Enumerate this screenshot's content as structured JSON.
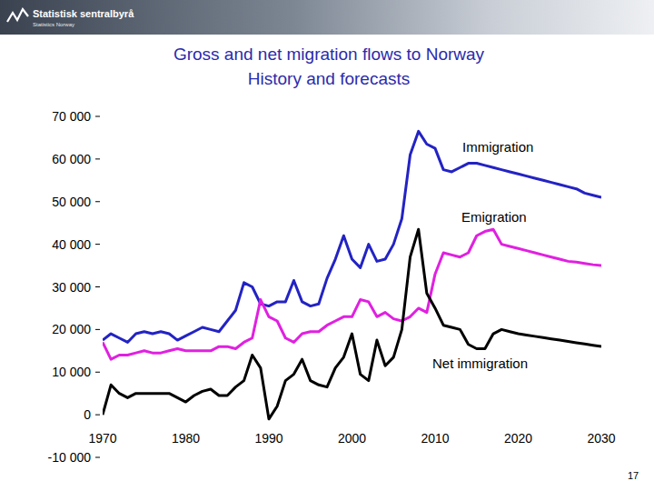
{
  "header": {
    "logo": "Statistisk sentralbyrå",
    "logo_subtitle": "Statistics Norway"
  },
  "page_number": "17",
  "chart_data": {
    "type": "line",
    "title": "Gross and net migration flows to Norway",
    "subtitle": "History and forecasts",
    "x": [
      1970,
      1971,
      1972,
      1973,
      1974,
      1975,
      1976,
      1977,
      1978,
      1979,
      1980,
      1981,
      1982,
      1983,
      1984,
      1985,
      1986,
      1987,
      1988,
      1989,
      1990,
      1991,
      1992,
      1993,
      1994,
      1995,
      1996,
      1997,
      1998,
      1999,
      2000,
      2001,
      2002,
      2003,
      2004,
      2005,
      2006,
      2007,
      2008,
      2009,
      2010,
      2011,
      2012,
      2013,
      2014,
      2015,
      2016,
      2017,
      2018,
      2019,
      2020,
      2021,
      2022,
      2023,
      2024,
      2025,
      2026,
      2027,
      2028,
      2029,
      2030
    ],
    "series": [
      {
        "name": "Immigration",
        "color": "#2323c4",
        "values": [
          17500,
          19000,
          18000,
          17000,
          19000,
          19500,
          19000,
          19500,
          19000,
          17500,
          18500,
          19500,
          20500,
          20000,
          19500,
          22000,
          24500,
          31000,
          30000,
          26000,
          25500,
          26500,
          26500,
          31500,
          26500,
          25500,
          26000,
          32000,
          36500,
          42000,
          36500,
          34500,
          40000,
          36000,
          36500,
          40000,
          46000,
          61000,
          66500,
          63500,
          62500,
          57500,
          57000,
          58000,
          59000,
          59000,
          58500,
          58000,
          57500,
          57000,
          56500,
          56000,
          55500,
          55000,
          54500,
          54000,
          53500,
          53000,
          52000,
          51500,
          51000
        ]
      },
      {
        "name": "Emigration",
        "color": "#e020e0",
        "values": [
          17000,
          13000,
          14000,
          14000,
          14500,
          15000,
          14500,
          14500,
          15000,
          15500,
          15000,
          15000,
          15000,
          15000,
          16000,
          16000,
          15500,
          17000,
          18000,
          27000,
          23000,
          22000,
          18000,
          17000,
          19000,
          19500,
          19500,
          21000,
          22000,
          23000,
          23000,
          27000,
          26500,
          23000,
          24000,
          22500,
          22000,
          23000,
          25000,
          24000,
          33000,
          38000,
          37500,
          37000,
          38000,
          42000,
          43000,
          43500,
          40000,
          39500,
          39000,
          38500,
          38000,
          37500,
          37000,
          36500,
          36000,
          35800,
          35500,
          35200,
          35000
        ]
      },
      {
        "name": "Net immigration",
        "color": "#000000",
        "values": [
          0,
          7000,
          5000,
          4000,
          5000,
          5000,
          5000,
          5000,
          5000,
          4000,
          3000,
          4500,
          5500,
          6000,
          4500,
          4500,
          6500,
          8000,
          14000,
          11000,
          -1000,
          2000,
          8000,
          9500,
          13000,
          8000,
          7000,
          6500,
          11000,
          13500,
          19000,
          9500,
          8000,
          17500,
          11500,
          13500,
          20000,
          37000,
          43500,
          28500,
          25000,
          21000,
          20500,
          20000,
          16500,
          15500,
          15500,
          19000,
          20000,
          19500,
          19000,
          18700,
          18400,
          18100,
          17800,
          17500,
          17200,
          16900,
          16600,
          16300,
          16000
        ]
      }
    ],
    "xlim": [
      1970,
      2030
    ],
    "xticks": [
      1970,
      1980,
      1990,
      2000,
      2010,
      2020,
      2030
    ],
    "ylim": [
      -10000,
      70000
    ],
    "yticks": [
      {
        "value": -10000,
        "label": "-10 000"
      },
      0,
      {
        "value": 10000,
        "label": "10 000"
      },
      {
        "value": 20000,
        "label": "20 000"
      },
      {
        "value": 30000,
        "label": "30 000"
      },
      {
        "value": 40000,
        "label": "40 000"
      },
      {
        "value": 50000,
        "label": "50 000"
      },
      {
        "value": 60000,
        "label": "60 000"
      },
      {
        "value": 70000,
        "label": "70 000"
      }
    ],
    "grid": false
  }
}
